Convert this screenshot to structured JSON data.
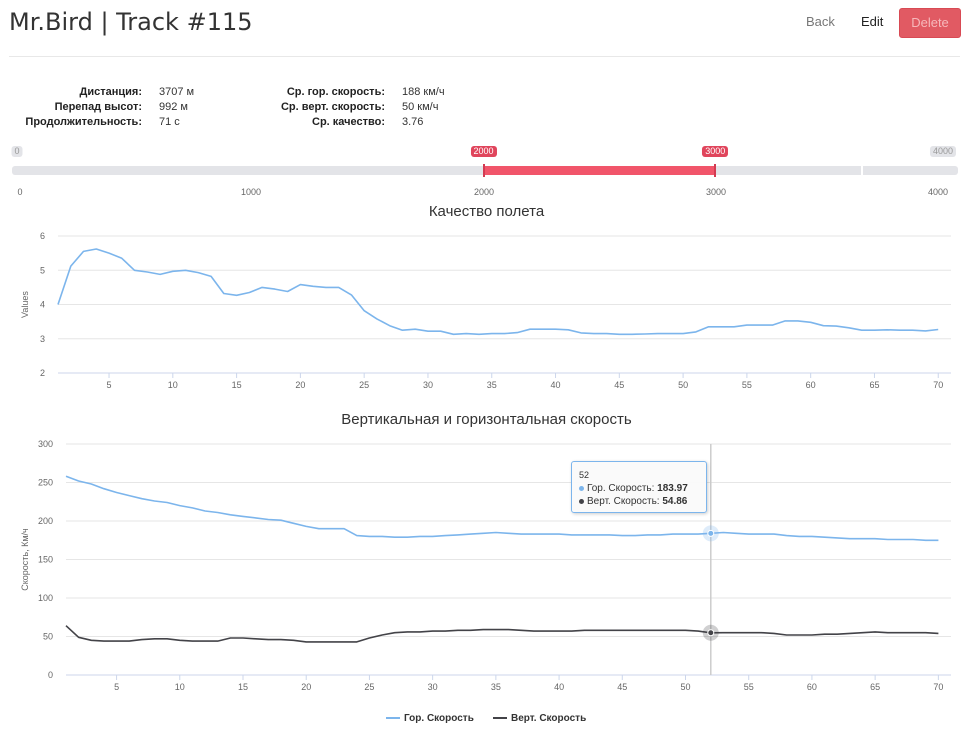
{
  "header": {
    "title": "Mr.Bird | Track #115",
    "back_label": "Back",
    "edit_label": "Edit",
    "delete_label": "Delete"
  },
  "stats": {
    "left": [
      {
        "label": "Дистанция:",
        "value": "3707 м"
      },
      {
        "label": "Перепад высот:",
        "value": "992 м"
      },
      {
        "label": "Продолжительность:",
        "value": "71 с"
      }
    ],
    "right": [
      {
        "label": "Ср. гор. скорость:",
        "value": "188 км/ч"
      },
      {
        "label": "Ср. верт. скорость:",
        "value": "50 км/ч"
      },
      {
        "label": "Ср. качество:",
        "value": "3.76"
      }
    ]
  },
  "range_slider": {
    "min": 0,
    "max": 4000,
    "min_label": "0",
    "max_label": "4000",
    "from": 2000,
    "to": 3000,
    "from_label": "2000",
    "to_label": "3000",
    "scale_labels": [
      "0",
      "1000",
      "2000",
      "3000",
      "4000"
    ],
    "colors": {
      "range": "#f1556a",
      "track": "#e3e4e8"
    }
  },
  "chart_data": [
    {
      "type": "line",
      "title": "Качество полета",
      "ylabel": "Values",
      "xlabel": "",
      "ylim": [
        2,
        6
      ],
      "xlim": [
        1,
        71
      ],
      "yticks": [
        "2",
        "3",
        "4",
        "5",
        "6"
      ],
      "xticks": [
        "5",
        "10",
        "15",
        "20",
        "25",
        "30",
        "35",
        "40",
        "45",
        "50",
        "55",
        "60",
        "65",
        "70"
      ],
      "grid": true,
      "series": [
        {
          "color": "#7cb5ec",
          "x": [
            1,
            2,
            3,
            4,
            5,
            6,
            7,
            8,
            9,
            10,
            11,
            12,
            13,
            14,
            15,
            16,
            17,
            18,
            19,
            20,
            21,
            22,
            23,
            24,
            25,
            26,
            27,
            28,
            29,
            30,
            31,
            32,
            33,
            34,
            35,
            36,
            37,
            38,
            39,
            40,
            41,
            42,
            43,
            44,
            45,
            46,
            47,
            48,
            49,
            50,
            51,
            52,
            53,
            54,
            55,
            56,
            57,
            58,
            59,
            60,
            61,
            62,
            63,
            64,
            65,
            66,
            67,
            68,
            69,
            70
          ],
          "values": [
            4.0,
            5.12,
            5.55,
            5.62,
            5.5,
            5.35,
            5.0,
            4.95,
            4.88,
            4.97,
            5.0,
            4.93,
            4.82,
            4.32,
            4.27,
            4.35,
            4.5,
            4.45,
            4.38,
            4.58,
            4.53,
            4.5,
            4.5,
            4.28,
            3.82,
            3.58,
            3.38,
            3.25,
            3.28,
            3.22,
            3.22,
            3.13,
            3.15,
            3.13,
            3.15,
            3.15,
            3.18,
            3.28,
            3.28,
            3.28,
            3.26,
            3.17,
            3.15,
            3.15,
            3.13,
            3.13,
            3.14,
            3.15,
            3.15,
            3.15,
            3.2,
            3.35,
            3.35,
            3.35,
            3.4,
            3.4,
            3.4,
            3.52,
            3.52,
            3.48,
            3.38,
            3.37,
            3.32,
            3.25,
            3.25,
            3.26,
            3.25,
            3.25,
            3.23,
            3.27
          ]
        }
      ]
    },
    {
      "type": "line",
      "title": "Вертикальная и горизонтальная скорость",
      "ylabel": "Скорость, Км/ч",
      "xlabel": "",
      "ylim": [
        0,
        300
      ],
      "xlim": [
        1,
        71
      ],
      "yticks": [
        "0",
        "50",
        "100",
        "150",
        "200",
        "250",
        "300"
      ],
      "xticks": [
        "5",
        "10",
        "15",
        "20",
        "25",
        "30",
        "35",
        "40",
        "45",
        "50",
        "55",
        "60",
        "65",
        "70"
      ],
      "grid": true,
      "legend": "bottom-center",
      "crosshair_x": 52,
      "series": [
        {
          "name": "Гор. Скорость",
          "color": "#7cb5ec",
          "x": [
            1,
            2,
            3,
            4,
            5,
            6,
            7,
            8,
            9,
            10,
            11,
            12,
            13,
            14,
            15,
            16,
            17,
            18,
            19,
            20,
            21,
            22,
            23,
            24,
            25,
            26,
            27,
            28,
            29,
            30,
            31,
            32,
            33,
            34,
            35,
            36,
            37,
            38,
            39,
            40,
            41,
            42,
            43,
            44,
            45,
            46,
            47,
            48,
            49,
            50,
            51,
            52,
            53,
            54,
            55,
            56,
            57,
            58,
            59,
            60,
            61,
            62,
            63,
            64,
            65,
            66,
            67,
            68,
            69,
            70
          ],
          "values": [
            258,
            252,
            248,
            242,
            237,
            233,
            229,
            226,
            224,
            220,
            217,
            213,
            211,
            208,
            206,
            204,
            202,
            201,
            197,
            193,
            190,
            190,
            190,
            181,
            180,
            180,
            179,
            179,
            180,
            180,
            181,
            182,
            183,
            184,
            185,
            184,
            183,
            183,
            183,
            183,
            182,
            182,
            182,
            182,
            181,
            181,
            182,
            182,
            183,
            183,
            183,
            183.97,
            185,
            184,
            183,
            183,
            183,
            181,
            180,
            180,
            179,
            178,
            177,
            177,
            177,
            176,
            176,
            176,
            175,
            175
          ]
        },
        {
          "name": "Верт. Скорость",
          "color": "#434348",
          "x": [
            1,
            2,
            3,
            4,
            5,
            6,
            7,
            8,
            9,
            10,
            11,
            12,
            13,
            14,
            15,
            16,
            17,
            18,
            19,
            20,
            21,
            22,
            23,
            24,
            25,
            26,
            27,
            28,
            29,
            30,
            31,
            32,
            33,
            34,
            35,
            36,
            37,
            38,
            39,
            40,
            41,
            42,
            43,
            44,
            45,
            46,
            47,
            48,
            49,
            50,
            51,
            52,
            53,
            54,
            55,
            56,
            57,
            58,
            59,
            60,
            61,
            62,
            63,
            64,
            65,
            66,
            67,
            68,
            69,
            70
          ],
          "values": [
            64,
            49,
            45,
            44,
            44,
            44,
            46,
            47,
            47,
            45,
            44,
            44,
            44,
            48,
            48,
            47,
            46,
            46,
            45,
            43,
            43,
            43,
            43,
            43,
            48,
            52,
            55,
            56,
            56,
            57,
            57,
            58,
            58,
            59,
            59,
            59,
            58,
            57,
            57,
            57,
            57,
            58,
            58,
            58,
            58,
            58,
            58,
            58,
            58,
            58,
            57,
            54.86,
            55,
            55,
            55,
            55,
            54,
            52,
            52,
            52,
            53,
            53,
            54,
            55,
            56,
            55,
            55,
            55,
            55,
            54
          ]
        }
      ]
    }
  ],
  "tooltip": {
    "x_label": "52",
    "rows": [
      {
        "name": "Гор. Скорость: ",
        "value": "183.97",
        "color": "#7cb5ec"
      },
      {
        "name": "Верт. Скорость: ",
        "value": "54.86",
        "color": "#434348"
      }
    ]
  }
}
